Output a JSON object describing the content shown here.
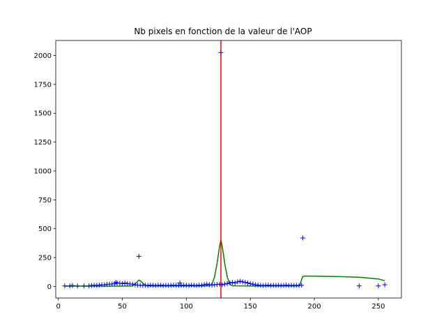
{
  "chart_data": {
    "type": "scatter",
    "title": "Nb pixels en fonction de la valeur de l'AOP",
    "xlabel": "",
    "ylabel": "",
    "xlim": [
      -2,
      268
    ],
    "ylim": [
      -100,
      2130
    ],
    "xticks": [
      0,
      50,
      100,
      150,
      200,
      250
    ],
    "yticks": [
      0,
      250,
      500,
      750,
      1000,
      1250,
      1500,
      1750,
      2000
    ],
    "grid": false,
    "colors": {
      "points": "#0000ff",
      "fit": "#008000",
      "vline": "#ff0000"
    },
    "vline_x": 127,
    "points": {
      "x": [
        5,
        9,
        11,
        15,
        20,
        24,
        26,
        28,
        30,
        32,
        34,
        36,
        38,
        40,
        42,
        44,
        45,
        46,
        48,
        50,
        52,
        54,
        56,
        58,
        60,
        62,
        63,
        64,
        66,
        68,
        70,
        72,
        74,
        76,
        78,
        80,
        82,
        84,
        86,
        88,
        90,
        92,
        94,
        95,
        96,
        98,
        100,
        102,
        104,
        106,
        108,
        110,
        112,
        114,
        116,
        118,
        120,
        122,
        124,
        126,
        127,
        128,
        130,
        132,
        134,
        136,
        138,
        140,
        142,
        144,
        146,
        148,
        150,
        152,
        154,
        156,
        158,
        160,
        162,
        164,
        166,
        168,
        170,
        172,
        174,
        176,
        178,
        180,
        182,
        184,
        186,
        188,
        190,
        191,
        235,
        250,
        255
      ],
      "y": [
        5,
        5,
        8,
        5,
        5,
        5,
        8,
        10,
        10,
        12,
        15,
        15,
        18,
        20,
        22,
        25,
        35,
        30,
        28,
        25,
        30,
        25,
        22,
        20,
        15,
        12,
        260,
        10,
        8,
        10,
        8,
        12,
        10,
        8,
        10,
        12,
        8,
        10,
        8,
        10,
        12,
        10,
        8,
        30,
        10,
        12,
        10,
        8,
        12,
        10,
        8,
        12,
        10,
        15,
        20,
        15,
        12,
        15,
        18,
        20,
        2025,
        15,
        20,
        25,
        30,
        35,
        30,
        40,
        45,
        40,
        35,
        30,
        25,
        20,
        15,
        12,
        10,
        8,
        10,
        12,
        8,
        10,
        8,
        10,
        8,
        10,
        12,
        8,
        10,
        8,
        10,
        8,
        10,
        420,
        5,
        5,
        15
      ]
    },
    "fit_line": {
      "x": [
        5,
        25,
        45,
        58,
        60,
        62,
        63,
        64,
        66,
        68,
        70,
        90,
        110,
        118,
        120,
        122,
        124,
        126,
        127,
        128,
        130,
        132,
        134,
        136,
        150,
        170,
        185,
        188,
        189,
        190,
        191,
        192,
        200,
        220,
        235,
        250,
        255
      ],
      "y": [
        3,
        3,
        3,
        4,
        20,
        45,
        55,
        50,
        30,
        8,
        4,
        4,
        4,
        6,
        20,
        80,
        200,
        350,
        400,
        350,
        200,
        80,
        20,
        6,
        4,
        4,
        4,
        5,
        20,
        60,
        85,
        90,
        90,
        85,
        80,
        65,
        50
      ]
    }
  }
}
